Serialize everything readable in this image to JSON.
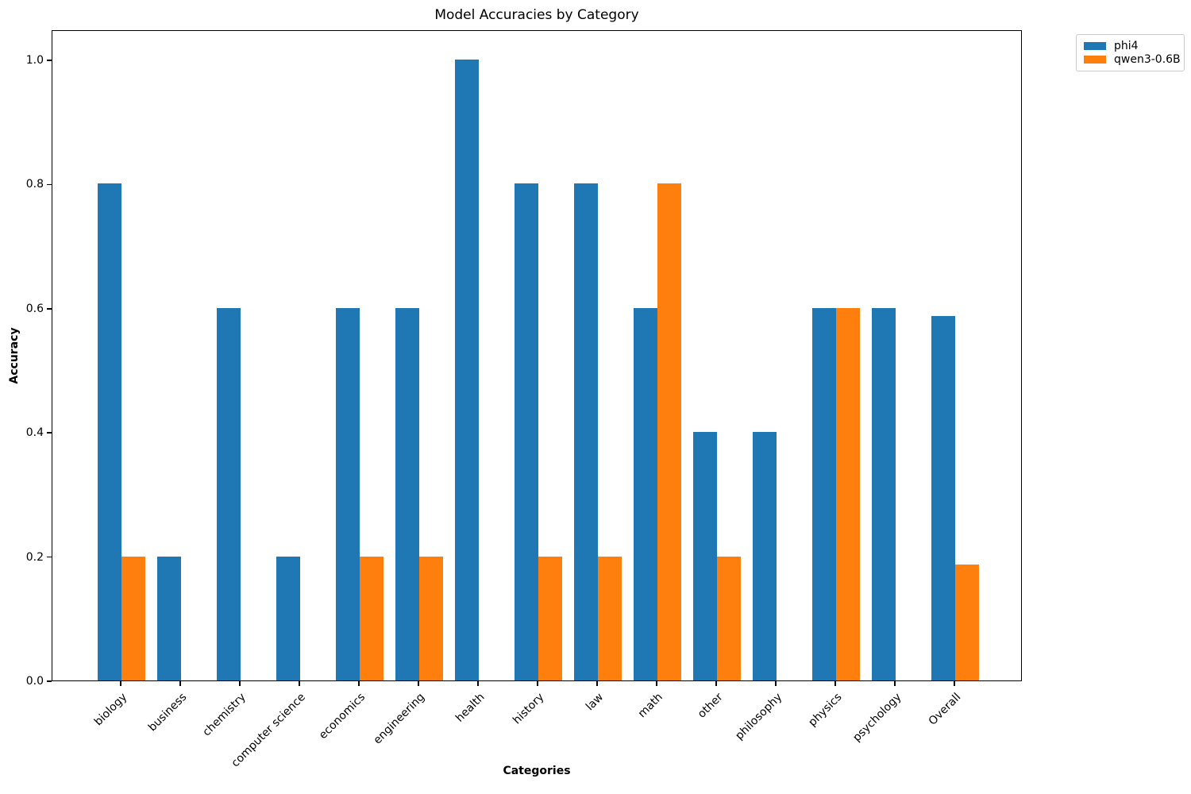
{
  "chart_data": {
    "type": "bar",
    "title": "Model Accuracies by Category",
    "xlabel": "Categories",
    "ylabel": "Accuracy",
    "categories": [
      "biology",
      "business",
      "chemistry",
      "computer science",
      "economics",
      "engineering",
      "health",
      "history",
      "law",
      "math",
      "other",
      "philosophy",
      "physics",
      "psychology",
      "Overall"
    ],
    "series": [
      {
        "name": "phi4",
        "color": "#1f77b4",
        "values": [
          0.8,
          0.2,
          0.6,
          0.2,
          0.6,
          0.6,
          1.0,
          0.8,
          0.8,
          0.6,
          0.4,
          0.4,
          0.6,
          0.6,
          0.587
        ]
      },
      {
        "name": "qwen3-0.6B",
        "color": "#ff7f0e",
        "values": [
          0.2,
          0.0,
          0.0,
          0.0,
          0.2,
          0.2,
          0.0,
          0.2,
          0.2,
          0.8,
          0.2,
          0.0,
          0.6,
          0.0,
          0.187
        ]
      }
    ],
    "yticks": [
      0.0,
      0.2,
      0.4,
      0.6,
      0.8,
      1.0
    ],
    "ytick_labels": [
      "0.0",
      "0.2",
      "0.4",
      "0.6",
      "0.8",
      "1.0"
    ],
    "ylim": [
      0,
      1.05
    ],
    "grid": false,
    "legend_position": "upper right outside axes",
    "background": "#ffffff",
    "text_color": "#000000"
  }
}
